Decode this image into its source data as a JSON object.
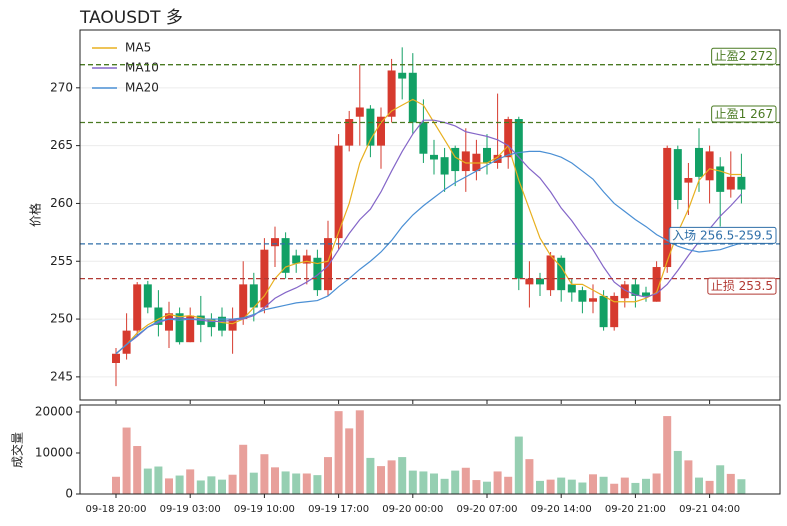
{
  "chart_data": [
    {
      "type": "candlestick",
      "title": "TAOUSDT  多",
      "ylabel": "价格",
      "open": [
        246.2,
        247,
        249,
        253,
        251,
        249,
        250.5,
        248,
        250.3,
        250,
        250.2,
        249,
        250,
        253,
        251,
        256.3,
        257,
        255.5,
        254.8,
        255.3,
        252.5,
        257,
        265,
        267.5,
        268.2,
        265,
        267.5,
        271.3,
        271.3,
        267,
        264.2,
        264,
        264.8,
        262.8,
        262.8,
        264.8,
        263.5,
        264,
        267.3,
        253,
        253.5,
        252.5,
        255.3,
        253,
        252.5,
        251.5,
        252,
        249.3,
        251.8,
        253,
        252.3,
        251.5,
        254.5,
        264.7,
        261.8,
        264.8,
        262,
        263.2,
        261.2,
        262.3
      ],
      "high": [
        247.5,
        250.5,
        253.2,
        253.3,
        252.5,
        251.5,
        251,
        251,
        252,
        250.5,
        251,
        251,
        255,
        254,
        257,
        258,
        257.5,
        256,
        256,
        256,
        258.5,
        266,
        268,
        272,
        268.5,
        268.3,
        272.5,
        273.5,
        273,
        269,
        265.5,
        264.8,
        265,
        266.5,
        265.5,
        266,
        269.5,
        267.5,
        267.5,
        255,
        254,
        255.8,
        255.5,
        253.5,
        252.8,
        253,
        252.5,
        252.3,
        253.3,
        253.5,
        252.8,
        255,
        265,
        265,
        263.5,
        266.5,
        265,
        264,
        264.5,
        264.3
      ],
      "low": [
        244.2,
        246.5,
        248.5,
        250.5,
        248.5,
        247.5,
        247.8,
        248,
        248,
        248.5,
        248.5,
        247,
        249.5,
        249.8,
        250.5,
        254.5,
        253.5,
        254,
        253,
        252,
        252,
        256,
        264.5,
        265,
        264,
        263,
        267,
        269,
        266,
        263.5,
        262.5,
        261,
        261.5,
        261,
        262,
        262.5,
        263,
        263,
        252.5,
        251,
        252,
        252,
        251.5,
        251.5,
        250.5,
        250.5,
        249,
        249,
        251,
        251,
        251.5,
        251.5,
        254,
        259.5,
        259,
        261,
        260,
        258,
        260.5,
        260
      ],
      "close": [
        247,
        249,
        253,
        251,
        249.5,
        250.5,
        248,
        250.3,
        249.5,
        249.3,
        249,
        250,
        253,
        251,
        256,
        257,
        254,
        254.8,
        255.5,
        252.5,
        257,
        265,
        267.3,
        268.3,
        265,
        267.5,
        271.5,
        270.8,
        267,
        264.3,
        263.8,
        262.5,
        262.8,
        264.5,
        264.3,
        263.5,
        264.2,
        267.3,
        253.5,
        253.5,
        253,
        255.5,
        252.5,
        252.3,
        251.5,
        251.8,
        249.3,
        252,
        253,
        252,
        252,
        254.5,
        264.8,
        260.3,
        262.2,
        262.3,
        264.5,
        261,
        262.3,
        261.2
      ],
      "up_color": "#d63a2e",
      "down_color": "#12a065",
      "ylim": [
        243,
        275
      ],
      "yticks": [
        245,
        250,
        255,
        260,
        265,
        270
      ],
      "grid": true,
      "legend": "upper left",
      "series": [
        {
          "name": "MA5",
          "color": "#e8b020",
          "values": [
            247,
            247.8,
            248.8,
            249.5,
            250,
            250.4,
            250.2,
            250.3,
            250.1,
            249.9,
            249.7,
            249.6,
            250,
            251,
            252,
            253.5,
            254.5,
            254.8,
            255,
            254.8,
            255,
            257.5,
            260,
            263.5,
            265.5,
            267,
            268,
            268.5,
            269,
            268.5,
            267,
            265.5,
            264,
            263.5,
            263.5,
            263.5,
            264,
            265,
            262,
            259.5,
            257,
            255.5,
            254.5,
            253,
            253,
            252.5,
            252,
            251.5,
            251.5,
            251.5,
            251.8,
            252.3,
            255,
            257.5,
            259.5,
            262,
            263,
            262.8,
            262.5,
            262.5
          ]
        },
        {
          "name": "MA10",
          "color": "#8466c8",
          "values": [
            247,
            247.8,
            248.5,
            249.3,
            249.7,
            250,
            250.1,
            250,
            249.9,
            249.8,
            249.8,
            249.9,
            250,
            250.3,
            251,
            251.8,
            252.3,
            252.7,
            253.2,
            253.8,
            254.6,
            256,
            257.4,
            258.6,
            259.5,
            261,
            262.8,
            264.5,
            266,
            267.2,
            267.2,
            267,
            266.7,
            266.2,
            266,
            265.8,
            265.5,
            265,
            264,
            263,
            262.2,
            261,
            259.6,
            258.5,
            257.2,
            256,
            254.5,
            253.2,
            252.5,
            252.1,
            251.9,
            252.2,
            253,
            254.2,
            255.5,
            256.7,
            257.8,
            258.9,
            259.8,
            260.8
          ]
        },
        {
          "name": "MA20",
          "color": "#4a8fd4",
          "values": [
            247,
            247.8,
            248.6,
            249.3,
            249.8,
            250,
            249.9,
            250,
            250,
            250,
            250,
            250,
            250.1,
            250.4,
            250.8,
            251,
            251.2,
            251.4,
            251.5,
            251.6,
            252,
            252.8,
            253.5,
            254.3,
            255,
            255.8,
            256.8,
            258,
            259,
            259.8,
            260.5,
            261.2,
            261.8,
            262.3,
            262.8,
            263.3,
            263.8,
            264.2,
            264.4,
            264.5,
            264.5,
            264.3,
            264,
            263.5,
            262.8,
            262.1,
            261,
            260,
            259.3,
            258.6,
            258,
            257.3,
            256.8,
            256.3,
            256,
            255.8,
            255.9,
            256,
            256.3,
            256.6
          ]
        }
      ],
      "hlines": [
        {
          "label": "止盈2 272",
          "value": 272,
          "color": "#4a7a22"
        },
        {
          "label": "止盈1 267",
          "value": 267,
          "color": "#4a7a22"
        },
        {
          "label": "入场 256.5-259.5",
          "value": 256.5,
          "color": "#2f6fa8"
        },
        {
          "label": "止损 253.5",
          "value": 253.5,
          "color": "#b23a34"
        }
      ]
    },
    {
      "type": "bar",
      "ylabel": "成交量",
      "categories": [
        "09-18 20:00",
        null,
        null,
        null,
        null,
        null,
        null,
        "09-19 03:00",
        null,
        null,
        null,
        null,
        null,
        null,
        "09-19 10:00",
        null,
        null,
        null,
        null,
        null,
        null,
        "09-19 17:00",
        null,
        null,
        null,
        null,
        null,
        null,
        "09-20 00:00",
        null,
        null,
        null,
        null,
        null,
        null,
        "09-20 07:00",
        null,
        null,
        null,
        null,
        null,
        null,
        "09-20 14:00",
        null,
        null,
        null,
        null,
        null,
        null,
        "09-20 21:00",
        null,
        null,
        null,
        null,
        null,
        null,
        "09-21 04:00",
        null,
        null,
        null
      ],
      "values": [
        4200,
        16200,
        11700,
        6200,
        6700,
        3800,
        4500,
        6000,
        3300,
        4300,
        3500,
        4700,
        12000,
        5200,
        9700,
        6500,
        5500,
        5000,
        5000,
        4600,
        9000,
        20200,
        16000,
        20400,
        8800,
        6800,
        8200,
        9000,
        5700,
        5500,
        5000,
        3700,
        5700,
        6400,
        3400,
        3000,
        5500,
        4200,
        14000,
        8500,
        3200,
        3500,
        4000,
        3500,
        2800,
        4800,
        4200,
        2500,
        4000,
        2700,
        3700,
        5000,
        19000,
        10500,
        8200,
        4000,
        3200,
        7000,
        4900,
        3600
      ],
      "up_color": "#e8a09b",
      "down_color": "#96cfb2",
      "ylim": [
        0,
        21700
      ],
      "yticks": [
        0,
        10000,
        20000
      ]
    }
  ]
}
